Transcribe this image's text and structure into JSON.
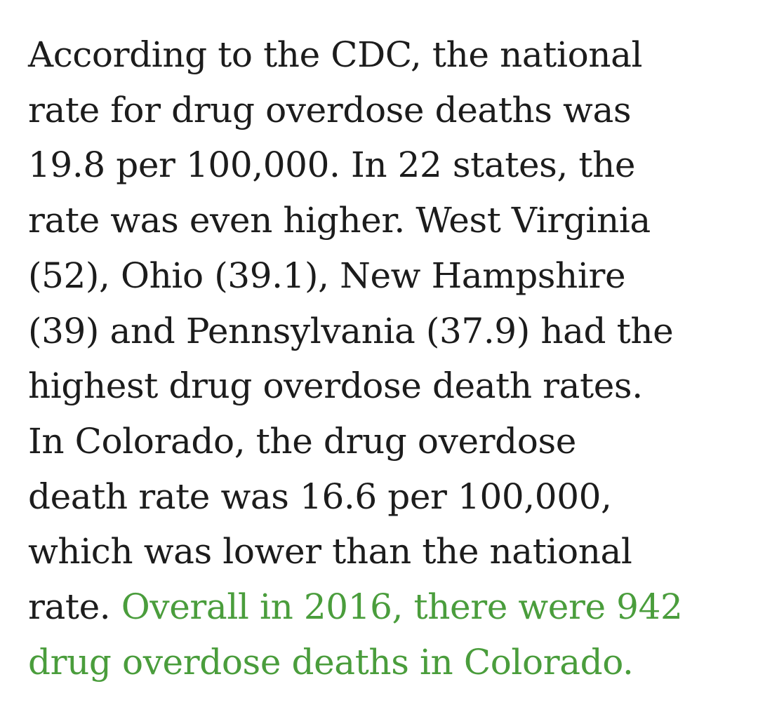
{
  "article": {
    "colors": {
      "text": "#1c1c1c",
      "highlight": "#4a9d3c"
    },
    "lines": [
      "According to the CDC, the national",
      "rate for drug overdose deaths was",
      "19.8 per 100,000. In 22 states, the",
      "rate was even higher. West Virginia",
      "(52), Ohio (39.1), New Hampshire",
      "(39) and Pennsylvania (37.9) had the",
      "highest drug overdose death rates.",
      "In Colorado, the drug overdose",
      "death rate was 16.6 per 100,000,",
      "which was lower than the national"
    ],
    "line_11_plain": "rate. ",
    "line_11_highlight": "Overall in 2016, there were 942",
    "line_12_highlight": "drug overdose deaths in Colorado."
  }
}
